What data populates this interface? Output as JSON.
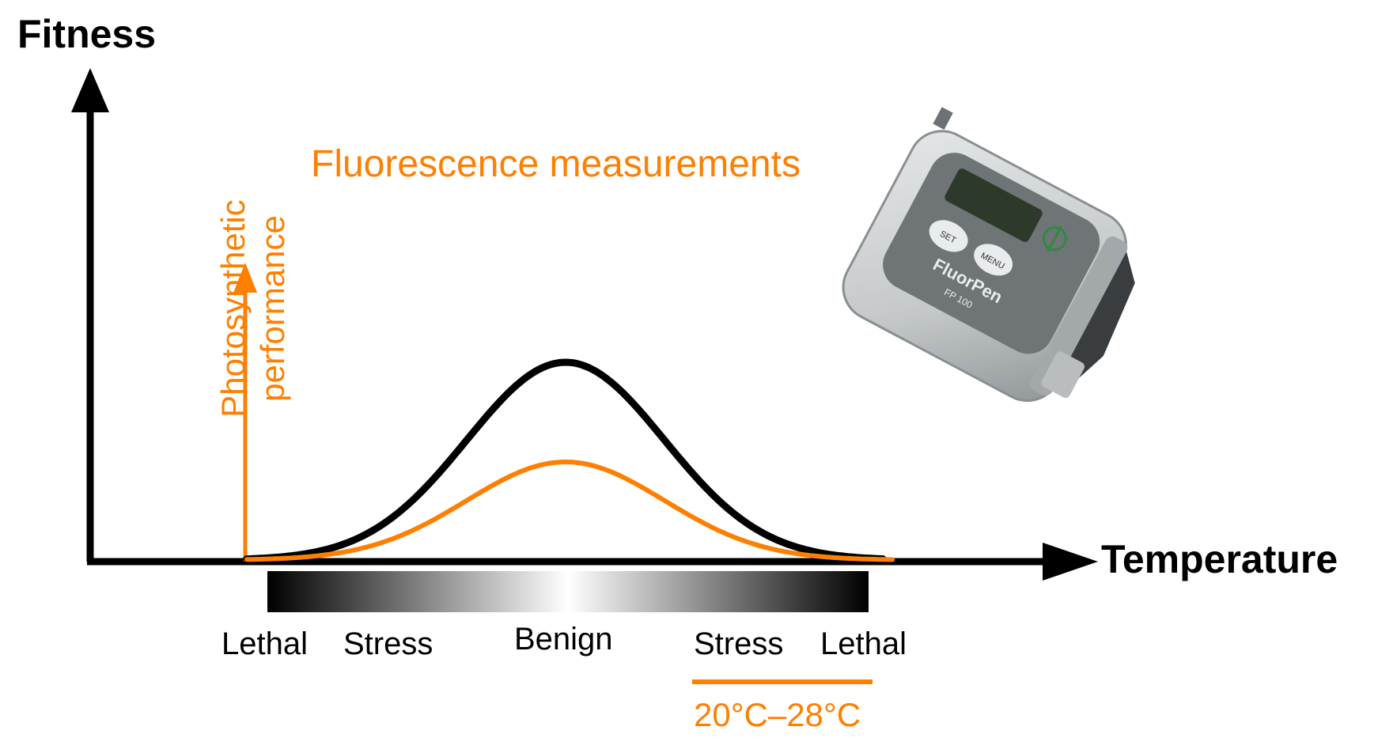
{
  "axes": {
    "y_title": "Fitness",
    "x_title": "Temperature"
  },
  "inner_axis_label": "Photosynthetic performance",
  "title": "Fluorescence measurements",
  "zones": [
    "Lethal",
    "Stress",
    "Benign",
    "Stress",
    "Lethal"
  ],
  "optimal_range": "20°C–28°C",
  "device": {
    "brand": "FluorPen",
    "model": "FP 100",
    "buttons": [
      "SET",
      "MENU"
    ]
  },
  "colors": {
    "accent": "#ff7f00",
    "axis": "#000000",
    "fitness_curve": "#000000",
    "photosynthetic_curve": "#ff7f00"
  }
}
